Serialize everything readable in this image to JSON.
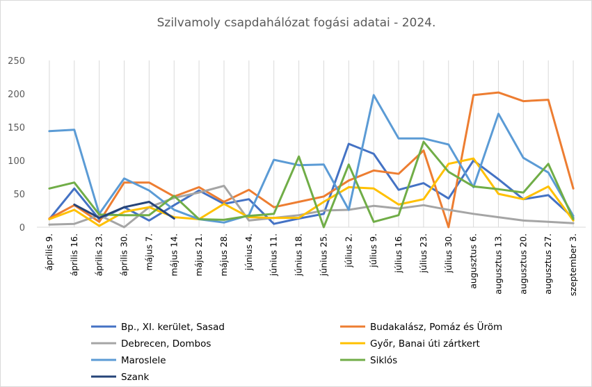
{
  "chart_data": {
    "type": "line",
    "title": "Szilvamoly csapdahálózat fogási adatai - 2024.",
    "xlabel": "",
    "ylabel": "",
    "ylim": [
      0,
      250
    ],
    "yticks": [
      0,
      50,
      100,
      150,
      200,
      250
    ],
    "grid": "vertical",
    "legend_position": "bottom",
    "categories": [
      "április 9.",
      "április 16.",
      "április 23.",
      "április 30.",
      "május 7.",
      "május 14.",
      "május 21.",
      "május 28.",
      "június 4.",
      "június 11.",
      "június 18.",
      "június 25.",
      "július 2.",
      "július 9.",
      "július 16.",
      "július 23.",
      "július 30.",
      "augusztus 6.",
      "augusztus 13.",
      "augusztus 20.",
      "augusztus 27.",
      "szeptember 3."
    ],
    "series": [
      {
        "name": "Bp., XI. kerület, Sasad",
        "color": "#4472c4",
        "values": [
          12,
          58,
          12,
          30,
          10,
          33,
          55,
          35,
          42,
          5,
          13,
          20,
          125,
          110,
          56,
          66,
          43,
          100,
          72,
          42,
          48,
          14
        ]
      },
      {
        "name": "Budakalász, Pomáz és Üröm",
        "color": "#ed7d31",
        "values": [
          13,
          33,
          8,
          67,
          67,
          46,
          60,
          38,
          56,
          30,
          38,
          46,
          70,
          85,
          80,
          115,
          0,
          198,
          202,
          189,
          191,
          58
        ]
      },
      {
        "name": "Debrecen, Dombos",
        "color": "#a5a5a5",
        "values": [
          4,
          5,
          18,
          0,
          30,
          44,
          52,
          62,
          10,
          14,
          18,
          25,
          26,
          32,
          28,
          33,
          26,
          20,
          15,
          10,
          8,
          6
        ]
      },
      {
        "name": "Győr, Banai úti zártkert",
        "color": "#ffc000",
        "values": [
          12,
          26,
          2,
          23,
          30,
          15,
          12,
          35,
          15,
          14,
          14,
          38,
          60,
          58,
          34,
          42,
          95,
          103,
          50,
          42,
          61,
          10
        ]
      },
      {
        "name": "Maroslele",
        "color": "#5b9bd5",
        "values": [
          144,
          146,
          20,
          73,
          55,
          26,
          12,
          7,
          18,
          101,
          93,
          94,
          26,
          198,
          133,
          133,
          124,
          60,
          170,
          104,
          82,
          17
        ]
      },
      {
        "name": "Siklós",
        "color": "#70ad47",
        "values": [
          58,
          67,
          19,
          18,
          18,
          47,
          12,
          11,
          17,
          20,
          106,
          0,
          94,
          8,
          18,
          128,
          83,
          61,
          57,
          52,
          95,
          12
        ]
      },
      {
        "name": "Szank",
        "color": "#264478",
        "values": [
          null,
          34,
          14,
          30,
          38,
          13,
          null,
          null,
          null,
          null,
          null,
          null,
          null,
          null,
          null,
          null,
          null,
          null,
          null,
          null,
          null,
          null
        ]
      }
    ]
  }
}
